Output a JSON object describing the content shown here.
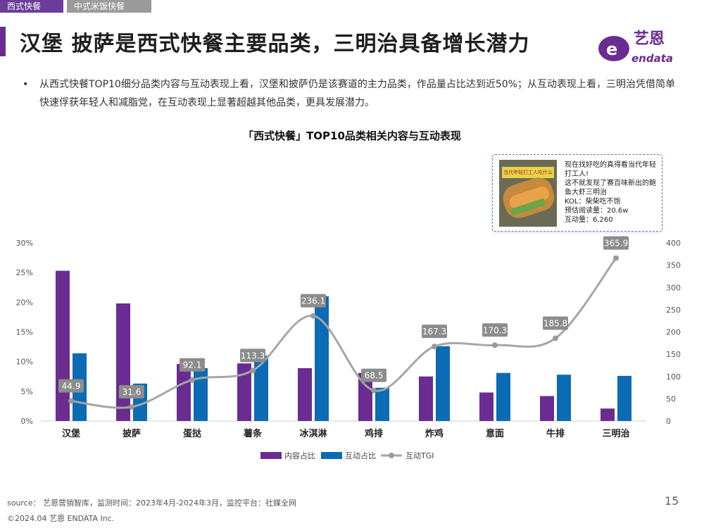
{
  "tabs": [
    "西式快餐",
    "中式米饭快餐"
  ],
  "title": "汉堡 披萨是西式快餐主要品类，三明治具备增长潜力",
  "logo": {
    "cn": "艺恩",
    "en": "endata",
    "color": "#6a2c91"
  },
  "bullet": {
    "dot": "•",
    "text": "从西式快餐TOP10细分品类内容与互动表现上看，汉堡和披萨仍是该赛道的主力品类，作品量占比达到近50%；从互动表现上看，三明治凭借简单快速俘获年轻人和减脂党，在互动表现上显著超越其他品类，更具发展潜力。"
  },
  "chart_title": "「西式快餐」TOP10品类相关内容与互动表现",
  "callout": {
    "thumb_text": "当代年轻打工人吃什么",
    "lines": [
      "现在找好吃的真得看当代年轻打工人!",
      "这不就发现了赛百味新出的鲍鱼大虾三明治",
      "KOL：柴柴吃不饱",
      "预估阅读量：20.6w",
      "互动量：6,260"
    ]
  },
  "chart_data": {
    "type": "bar",
    "categories": [
      "汉堡",
      "披萨",
      "蛋挞",
      "薯条",
      "冰淇淋",
      "鸡排",
      "炸鸡",
      "意面",
      "牛排",
      "三明治"
    ],
    "series": [
      {
        "name": "内容占比",
        "type": "bar",
        "axis": "left",
        "color": "#6a2c91",
        "values": [
          25.3,
          19.8,
          9.6,
          9.7,
          8.9,
          8.1,
          7.5,
          4.8,
          4.2,
          2.1
        ]
      },
      {
        "name": "互动占比",
        "type": "bar",
        "axis": "left",
        "color": "#0b6bb5",
        "values": [
          11.4,
          6.3,
          8.9,
          11.0,
          21.0,
          5.6,
          12.6,
          8.1,
          7.8,
          7.6
        ]
      },
      {
        "name": "互动TGI",
        "type": "line",
        "axis": "right",
        "color": "#a6a6a6",
        "values": [
          44.9,
          31.6,
          92.1,
          113.3,
          236.1,
          68.5,
          167.3,
          170.3,
          185.8,
          365.9
        ]
      }
    ],
    "y_left": {
      "min": 0,
      "max": 30,
      "ticks": [
        "0%",
        "5%",
        "10%",
        "15%",
        "20%",
        "25%",
        "30%"
      ]
    },
    "y_right": {
      "min": 0,
      "max": 400,
      "ticks": [
        "0",
        "50",
        "100",
        "150",
        "200",
        "250",
        "300",
        "350",
        "400"
      ]
    },
    "legend_position": "bottom",
    "grid": false
  },
  "footer": {
    "source": "source： 艺恩营销智库，监测时间：2023年4月-2024年3月，监控平台：社媒全网",
    "copyright": "©2024.04  艺恩 ENDATA Inc.",
    "page": "15"
  }
}
